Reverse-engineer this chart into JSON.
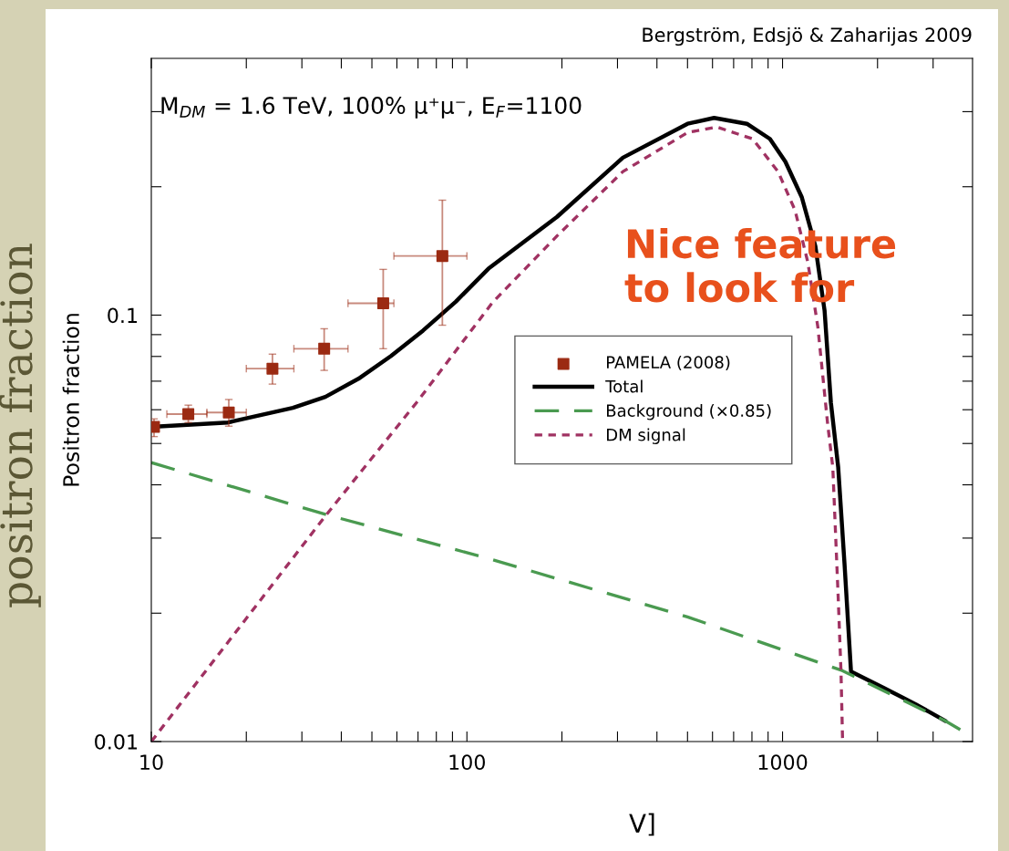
{
  "chart_data": {
    "type": "line",
    "ylabel": "Positron fraction",
    "annotations": [
      "Bergström, Edsjö & Zaharijas 2009",
      "M$_{DM}$ = 1.6 TeV, 100% μ⁺μ⁻, E$_{F}$=1100",
      "Nice feature\nto look for",
      "positron fraction",
      "V]"
    ],
    "log": "xy",
    "xlim": [
      10,
      4000
    ],
    "ylim": [
      0.01,
      0.4
    ],
    "xticks": [
      10,
      {
        "value": 20,
        "label": null
      },
      {
        "value": 30,
        "label": null
      },
      {
        "value": 40,
        "label": null
      },
      {
        "value": 50,
        "label": null
      },
      {
        "value": 60,
        "label": null
      },
      {
        "value": 70,
        "label": null
      },
      {
        "value": 80,
        "label": null
      },
      {
        "value": 90,
        "label": null
      },
      100,
      {
        "value": 200,
        "label": null
      },
      {
        "value": 300,
        "label": null
      },
      {
        "value": 400,
        "label": null
      },
      {
        "value": 500,
        "label": null
      },
      {
        "value": 600,
        "label": null
      },
      {
        "value": 700,
        "label": null
      },
      {
        "value": 800,
        "label": null
      },
      {
        "value": 900,
        "label": null
      },
      1000,
      {
        "value": 2000,
        "label": null
      },
      {
        "value": 3000,
        "label": null
      }
    ],
    "yticks": [
      0.01,
      {
        "value": 0.02,
        "label": null
      },
      {
        "value": 0.03,
        "label": null
      },
      {
        "value": 0.04,
        "label": null
      },
      {
        "value": 0.05,
        "label": null
      },
      {
        "value": 0.06,
        "label": null
      },
      {
        "value": 0.07,
        "label": null
      },
      {
        "value": 0.08,
        "label": null
      },
      {
        "value": 0.09,
        "label": null
      },
      0.1,
      {
        "value": 0.2,
        "label": null
      },
      {
        "value": 0.3,
        "label": null
      }
    ],
    "grid": false,
    "legend": "right",
    "series": [
      {
        "name": "PAMELA (2008)",
        "type": "scatter",
        "color": "#9b2a12",
        "marker": "square",
        "x": [
          10.2,
          13.1,
          17.6,
          24.2,
          35.3,
          54.3,
          83.6
        ],
        "values": [
          0.0547,
          0.0586,
          0.0591,
          0.0749,
          0.0834,
          0.1066,
          0.1376
        ],
        "errors": [
          [
            0.0519,
            0.0571
          ],
          [
            0.056,
            0.0615
          ],
          [
            0.0549,
            0.0634
          ],
          [
            0.0689,
            0.081
          ],
          [
            0.0742,
            0.0929
          ],
          [
            0.0834,
            0.128
          ],
          [
            0.0947,
            0.186
          ]
        ],
        "xerrors": [
          null,
          [
            11.2,
            15.0
          ],
          [
            15.0,
            20
          ],
          [
            20,
            28.3
          ],
          [
            28.3,
            42
          ],
          [
            42,
            58.7
          ],
          [
            58.7,
            100
          ]
        ]
      },
      {
        "name": "Total",
        "type": "line",
        "color": "#000000",
        "line_style": "solid",
        "x": [
          10,
          17.5,
          28.1,
          35.6,
          45.3,
          57.5,
          72.6,
          92.3,
          117,
          193,
          312,
          500,
          607,
          771,
          912,
          1021,
          1151,
          1271,
          1359,
          1423,
          1501,
          1573,
          1648,
          2094,
          2642,
          3266
        ],
        "values": [
          0.0547,
          0.056,
          0.0606,
          0.0643,
          0.0709,
          0.0802,
          0.092,
          0.1076,
          0.1285,
          0.17,
          0.234,
          0.281,
          0.29,
          0.281,
          0.259,
          0.229,
          0.189,
          0.145,
          0.1025,
          0.0624,
          0.044,
          0.0259,
          0.0146,
          0.01336,
          0.01223,
          0.0112
        ]
      },
      {
        "name": "Background (×0.85)",
        "type": "line",
        "color": "#4a9a50",
        "line_style": "dashed",
        "x": [
          10,
          35.6,
          120.5,
          500,
          1546,
          3266,
          3917
        ],
        "values": [
          0.0451,
          0.0341,
          0.0267,
          0.0196,
          0.01467,
          0.0112,
          0.01035
        ]
      },
      {
        "name": "DM signal",
        "type": "line",
        "color": "#a03262",
        "line_style": "dotted",
        "x": [
          10,
          35.6,
          69.3,
          120.5,
          193,
          312,
          500,
          620,
          804,
          968,
          1096,
          1203,
          1294,
          1390,
          1443,
          1501,
          1532,
          1550
        ],
        "values": [
          0.01,
          0.0338,
          0.0624,
          0.107,
          0.1534,
          0.217,
          0.268,
          0.276,
          0.259,
          0.217,
          0.176,
          0.133,
          0.0938,
          0.0555,
          0.044,
          0.0218,
          0.0146,
          0.01
        ]
      }
    ]
  }
}
